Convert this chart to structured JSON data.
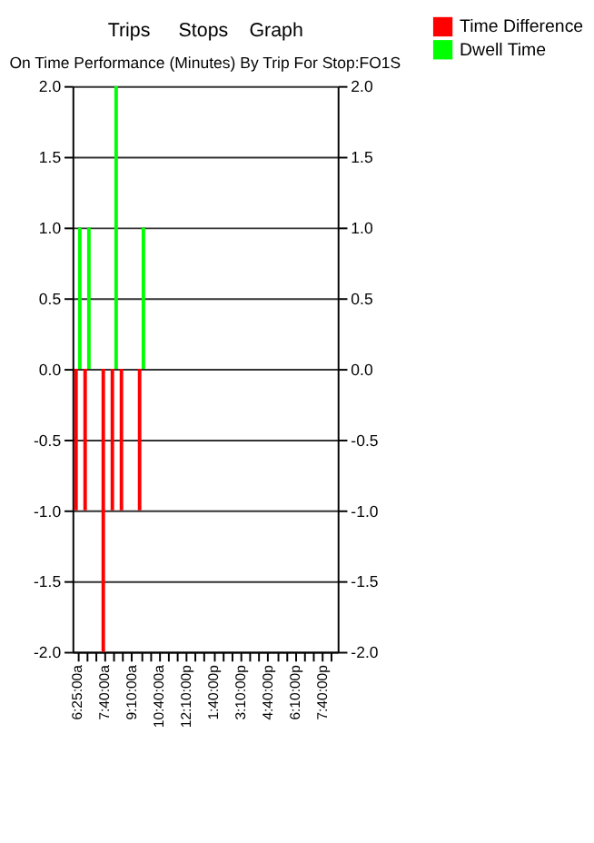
{
  "chart_data": {
    "type": "bar",
    "title": "On Time Performance (Minutes) By Trip For Stop:FO1S",
    "annotations": [
      "Trips",
      "Stops",
      "Graph"
    ],
    "categories": [
      "6:25:00a",
      null,
      null,
      "7:40:00a",
      null,
      null,
      "9:10:00a",
      null,
      null,
      "10:40:00a",
      null,
      null,
      "12:10:00p",
      null,
      null,
      "1:40:00p",
      null,
      null,
      "3:10:00p",
      null,
      null,
      "4:40:00p",
      null,
      null,
      "6:10:00p",
      null,
      null,
      "7:40:00p",
      null
    ],
    "series": [
      {
        "name": "Time Difference",
        "color": "#ff0000",
        "values": [
          -1,
          -1,
          0,
          -2,
          -1,
          -1,
          0,
          -1,
          0,
          0,
          0,
          0,
          0,
          0,
          0,
          0,
          0,
          0,
          0,
          0,
          0,
          0,
          0,
          0,
          0,
          0,
          0,
          0,
          0
        ]
      },
      {
        "name": "Dwell Time",
        "color": "#00ff00",
        "values": [
          1,
          1,
          0,
          0,
          2,
          0,
          0,
          1,
          0,
          0,
          0,
          0,
          0,
          0,
          0,
          0,
          0,
          0,
          0,
          0,
          0,
          0,
          0,
          0,
          0,
          0,
          0,
          0,
          0
        ]
      }
    ],
    "ylim": [
      -2.0,
      2.0
    ],
    "yticks": [
      {
        "value": -2,
        "label": "-2.0"
      },
      {
        "value": -1.5,
        "label": "-1.5"
      },
      {
        "value": -1,
        "label": "-1.0"
      },
      {
        "value": -0.5,
        "label": "-0.5"
      },
      {
        "value": 0,
        "label": "0.0"
      },
      {
        "value": 0.5,
        "label": "0.5"
      },
      {
        "value": 1,
        "label": "1.0"
      },
      {
        "value": 1.5,
        "label": "1.5"
      },
      {
        "value": 2,
        "label": "2.0"
      }
    ],
    "y2lim": [
      -2.0,
      2.0
    ],
    "y2ticks": [
      {
        "value": -2,
        "label": "-2.0"
      },
      {
        "value": -1.5,
        "label": "-1.5"
      },
      {
        "value": -1,
        "label": "-1.0"
      },
      {
        "value": -0.5,
        "label": "-0.5"
      },
      {
        "value": 0,
        "label": "0.0"
      },
      {
        "value": 0.5,
        "label": "0.5"
      },
      {
        "value": 1,
        "label": "1.0"
      },
      {
        "value": 1.5,
        "label": "1.5"
      },
      {
        "value": 2,
        "label": "2.0"
      }
    ],
    "grid": "y",
    "legend": "right"
  }
}
